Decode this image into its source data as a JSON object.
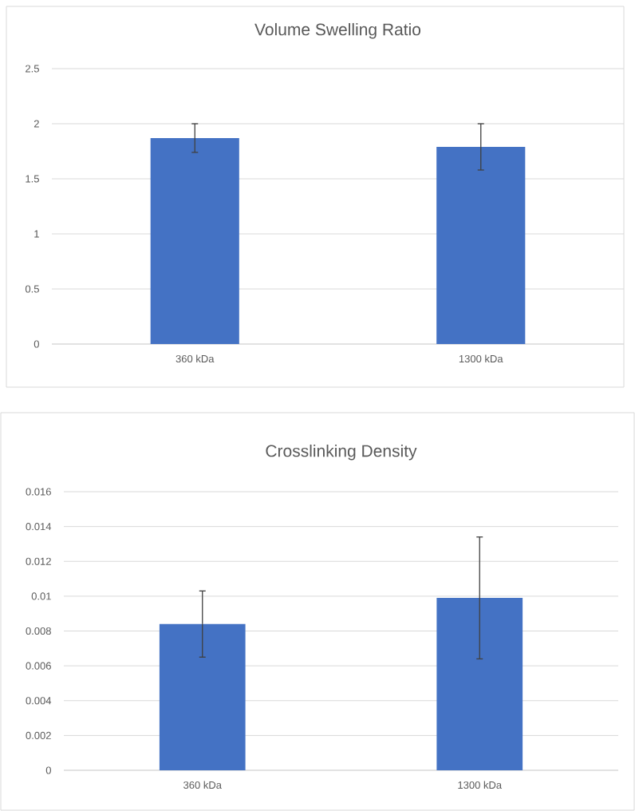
{
  "chart_data": [
    {
      "type": "bar",
      "title": "Volume Swelling Ratio",
      "categories": [
        "360 kDa",
        "1300 kDa"
      ],
      "values": [
        1.87,
        1.79
      ],
      "errors": [
        0.13,
        0.21
      ],
      "color": "#4472c4",
      "ylim": [
        0,
        2.5
      ],
      "yticks": [
        0,
        0.5,
        1,
        1.5,
        2,
        2.5
      ],
      "grid": "y"
    },
    {
      "type": "bar",
      "title": "Crosslinking Density",
      "categories": [
        "360 kDa",
        "1300 kDa"
      ],
      "values": [
        0.0084,
        0.0099
      ],
      "errors": [
        0.0019,
        0.0035
      ],
      "color": "#4472c4",
      "ylim": [
        0,
        0.016
      ],
      "yticks": [
        0,
        0.002,
        0.004,
        0.006,
        0.008,
        0.01,
        0.012,
        0.014,
        0.016
      ],
      "grid": "y"
    }
  ]
}
